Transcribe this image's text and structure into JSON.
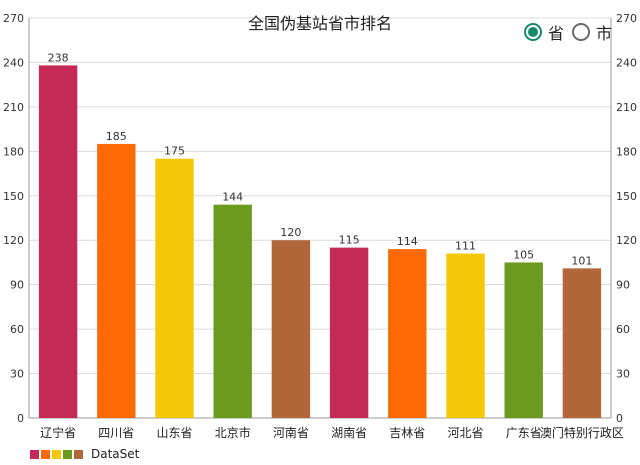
{
  "chart_data": {
    "type": "bar",
    "title": "全国伪基站省市排名",
    "categories": [
      "辽宁省",
      "四川省",
      "山东省",
      "北京市",
      "河南省",
      "湖南省",
      "吉林省",
      "河北省",
      "广东省",
      "澳门特别行政区"
    ],
    "series": [
      {
        "name": "DataSet",
        "values": [
          238,
          185,
          175,
          144,
          120,
          115,
          114,
          111,
          105,
          101
        ]
      }
    ],
    "colors": [
      "#c42a55",
      "#fd6a05",
      "#f4c806",
      "#6a9a1e",
      "#b1673a"
    ],
    "ylim": [
      0,
      270
    ],
    "yticks": [
      0,
      30,
      60,
      90,
      120,
      150,
      180,
      210,
      240,
      270
    ],
    "grid": true,
    "legend_position": "bottom-left"
  },
  "toggle": {
    "options": [
      {
        "label": "省",
        "checked": true
      },
      {
        "label": "市",
        "checked": false
      }
    ],
    "accent_color": "#16896b"
  }
}
